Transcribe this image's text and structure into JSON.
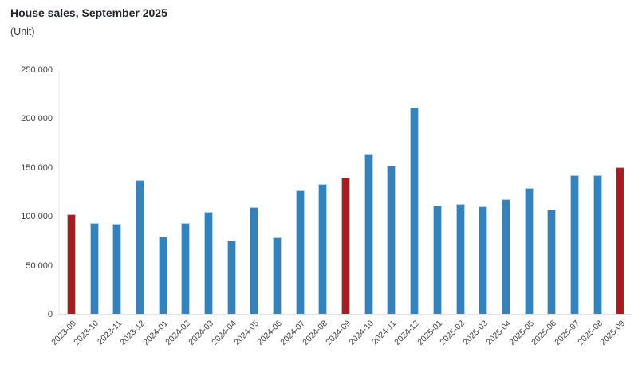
{
  "header": {
    "title": "House sales, September 2025",
    "subtitle": "(Unit)"
  },
  "chart_data": {
    "type": "bar",
    "title": "House sales, September 2025",
    "subtitle": "(Unit)",
    "xlabel": "",
    "ylabel": "Unit",
    "ylim": [
      0,
      250000
    ],
    "ytick_step": 50000,
    "ytick_labels": [
      "250 000",
      "200 000",
      "150 000",
      "100 000",
      "50 000",
      "0"
    ],
    "grid": false,
    "legend": false,
    "categories": [
      "2023-09",
      "2023-10",
      "2023-11",
      "2023-12",
      "2024-01",
      "2024-02",
      "2024-03",
      "2024-04",
      "2024-05",
      "2024-06",
      "2024-07",
      "2024-08",
      "2024-09",
      "2024-10",
      "2024-11",
      "2024-12",
      "2025-01",
      "2025-02",
      "2025-03",
      "2025-04",
      "2025-05",
      "2025-06",
      "2025-07",
      "2025-08",
      "2025-09"
    ],
    "values": [
      102000,
      93000,
      92500,
      137500,
      79000,
      93000,
      104500,
      75000,
      109500,
      78500,
      126500,
      133500,
      139500,
      164000,
      152000,
      211500,
      111500,
      112500,
      110000,
      117500,
      129500,
      107000,
      142000,
      142500,
      150000
    ],
    "highlight_categories": [
      "2023-09",
      "2024-09",
      "2025-09"
    ],
    "colors": {
      "default_bar": "#3382bc",
      "highlight_bar": "#ae1a20"
    }
  }
}
